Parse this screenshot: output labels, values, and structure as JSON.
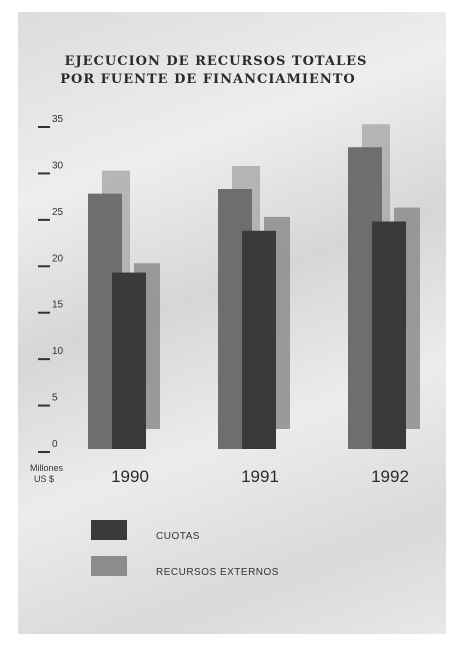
{
  "chart_data": {
    "type": "bar",
    "title_lines": [
      "EJECUCION DE RECURSOS TOTALES",
      "POR FUENTE DE FINANCIAMIENTO"
    ],
    "unit_lines": [
      "Millones",
      "US $"
    ],
    "categories": [
      "1990",
      "1991",
      "1992"
    ],
    "ylim": [
      0,
      35
    ],
    "yticks": [
      0,
      5,
      10,
      15,
      20,
      25,
      30,
      35
    ],
    "grid": false,
    "legend_position": "bottom",
    "series": [
      {
        "name": "CUOTAS",
        "values": [
          19,
          23.5,
          24.5
        ],
        "color": "#3a3a3a"
      },
      {
        "name": "RECURSOS EXTERNOS",
        "values": [
          20,
          25,
          26
        ],
        "color": "#8c8c8c"
      }
    ],
    "total_values": [
      27.5,
      28,
      32.5
    ],
    "total_color": "#6e6e6e",
    "total_shadow_color": "#a8a8a8"
  }
}
